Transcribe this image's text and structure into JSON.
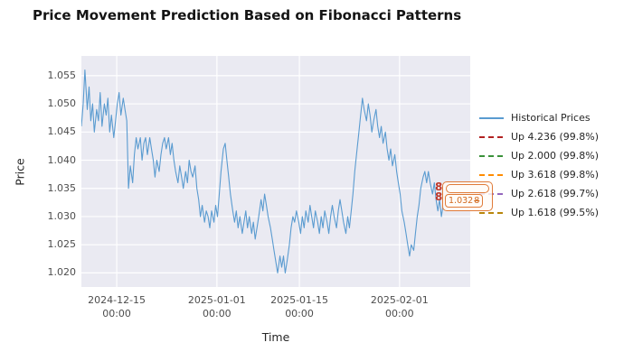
{
  "chart_data": {
    "type": "line",
    "title": "Price Movement Prediction Based on Fibonacci Patterns",
    "xlabel": "Time",
    "ylabel": "Price",
    "xlim": [
      0,
      66
    ],
    "ylim": [
      1.0175,
      1.0585
    ],
    "x_unit": "days since 2024-12-09 00:00",
    "grid": true,
    "axes_bg": "#eaeaf2",
    "grid_color": "#ffffff",
    "x_ticks": [
      {
        "day": 6,
        "line1": "2024-12-15",
        "line2": "00:00"
      },
      {
        "day": 23,
        "line1": "2025-01-01",
        "line2": "00:00"
      },
      {
        "day": 37,
        "line1": "2025-01-15",
        "line2": "00:00"
      },
      {
        "day": 54,
        "line1": "2025-02-01",
        "line2": "00:00"
      }
    ],
    "y_ticks": [
      {
        "v": 1.02,
        "label": "1.020"
      },
      {
        "v": 1.025,
        "label": "1.025"
      },
      {
        "v": 1.03,
        "label": "1.030"
      },
      {
        "v": 1.035,
        "label": "1.035"
      },
      {
        "v": 1.04,
        "label": "1.040"
      },
      {
        "v": 1.045,
        "label": "1.045"
      },
      {
        "v": 1.05,
        "label": "1.050"
      },
      {
        "v": 1.055,
        "label": "1.055"
      }
    ],
    "series": [
      {
        "name": "Historical Prices",
        "color": "#5a9bd0",
        "points": [
          [
            0,
            1.046
          ],
          [
            0.3,
            1.05
          ],
          [
            0.6,
            1.056
          ],
          [
            1,
            1.049
          ],
          [
            1.3,
            1.053
          ],
          [
            1.6,
            1.047
          ],
          [
            1.9,
            1.05
          ],
          [
            2.2,
            1.045
          ],
          [
            2.6,
            1.049
          ],
          [
            2.9,
            1.047
          ],
          [
            3.2,
            1.052
          ],
          [
            3.5,
            1.046
          ],
          [
            3.9,
            1.05
          ],
          [
            4.2,
            1.048
          ],
          [
            4.5,
            1.051
          ],
          [
            4.8,
            1.045
          ],
          [
            5.1,
            1.048
          ],
          [
            5.5,
            1.044
          ],
          [
            5.8,
            1.047
          ],
          [
            6.1,
            1.05
          ],
          [
            6.4,
            1.052
          ],
          [
            6.7,
            1.048
          ],
          [
            7.1,
            1.051
          ],
          [
            7.4,
            1.049
          ],
          [
            7.7,
            1.047
          ],
          [
            8,
            1.035
          ],
          [
            8.3,
            1.039
          ],
          [
            8.7,
            1.036
          ],
          [
            9,
            1.041
          ],
          [
            9.3,
            1.044
          ],
          [
            9.6,
            1.042
          ],
          [
            10,
            1.044
          ],
          [
            10.3,
            1.04
          ],
          [
            10.6,
            1.043
          ],
          [
            10.9,
            1.044
          ],
          [
            11.2,
            1.041
          ],
          [
            11.6,
            1.044
          ],
          [
            11.9,
            1.042
          ],
          [
            12.2,
            1.04
          ],
          [
            12.5,
            1.037
          ],
          [
            12.8,
            1.04
          ],
          [
            13.2,
            1.038
          ],
          [
            13.5,
            1.041
          ],
          [
            13.8,
            1.043
          ],
          [
            14.1,
            1.044
          ],
          [
            14.4,
            1.042
          ],
          [
            14.8,
            1.044
          ],
          [
            15.1,
            1.041
          ],
          [
            15.4,
            1.043
          ],
          [
            15.7,
            1.04
          ],
          [
            16,
            1.038
          ],
          [
            16.4,
            1.036
          ],
          [
            16.7,
            1.039
          ],
          [
            17,
            1.037
          ],
          [
            17.3,
            1.035
          ],
          [
            17.7,
            1.038
          ],
          [
            18,
            1.036
          ],
          [
            18.3,
            1.04
          ],
          [
            18.6,
            1.038
          ],
          [
            18.9,
            1.037
          ],
          [
            19.3,
            1.039
          ],
          [
            19.6,
            1.035
          ],
          [
            19.9,
            1.033
          ],
          [
            20.2,
            1.03
          ],
          [
            20.5,
            1.032
          ],
          [
            20.9,
            1.029
          ],
          [
            21.2,
            1.031
          ],
          [
            21.5,
            1.03
          ],
          [
            21.8,
            1.028
          ],
          [
            22.1,
            1.031
          ],
          [
            22.5,
            1.029
          ],
          [
            22.8,
            1.032
          ],
          [
            23.1,
            1.03
          ],
          [
            23.4,
            1.034
          ],
          [
            23.7,
            1.038
          ],
          [
            24.1,
            1.042
          ],
          [
            24.4,
            1.043
          ],
          [
            24.7,
            1.04
          ],
          [
            25,
            1.037
          ],
          [
            25.3,
            1.034
          ],
          [
            25.7,
            1.031
          ],
          [
            26,
            1.029
          ],
          [
            26.3,
            1.031
          ],
          [
            26.6,
            1.028
          ],
          [
            26.9,
            1.03
          ],
          [
            27.3,
            1.027
          ],
          [
            27.6,
            1.029
          ],
          [
            27.9,
            1.031
          ],
          [
            28.2,
            1.028
          ],
          [
            28.5,
            1.03
          ],
          [
            28.9,
            1.027
          ],
          [
            29.2,
            1.029
          ],
          [
            29.5,
            1.026
          ],
          [
            29.8,
            1.028
          ],
          [
            30.1,
            1.03
          ],
          [
            30.5,
            1.033
          ],
          [
            30.8,
            1.031
          ],
          [
            31.1,
            1.034
          ],
          [
            31.4,
            1.032
          ],
          [
            31.7,
            1.03
          ],
          [
            32.1,
            1.028
          ],
          [
            32.4,
            1.026
          ],
          [
            32.7,
            1.024
          ],
          [
            33,
            1.022
          ],
          [
            33.3,
            1.02
          ],
          [
            33.7,
            1.023
          ],
          [
            34,
            1.021
          ],
          [
            34.3,
            1.023
          ],
          [
            34.6,
            1.02
          ],
          [
            34.9,
            1.022
          ],
          [
            35.3,
            1.025
          ],
          [
            35.6,
            1.028
          ],
          [
            35.9,
            1.03
          ],
          [
            36.2,
            1.029
          ],
          [
            36.5,
            1.031
          ],
          [
            36.9,
            1.029
          ],
          [
            37.2,
            1.027
          ],
          [
            37.5,
            1.03
          ],
          [
            37.8,
            1.028
          ],
          [
            38.1,
            1.031
          ],
          [
            38.5,
            1.029
          ],
          [
            38.8,
            1.032
          ],
          [
            39.1,
            1.03
          ],
          [
            39.4,
            1.028
          ],
          [
            39.7,
            1.031
          ],
          [
            40.1,
            1.029
          ],
          [
            40.4,
            1.027
          ],
          [
            40.7,
            1.03
          ],
          [
            41,
            1.028
          ],
          [
            41.3,
            1.031
          ],
          [
            41.7,
            1.029
          ],
          [
            42,
            1.027
          ],
          [
            42.3,
            1.03
          ],
          [
            42.6,
            1.032
          ],
          [
            42.9,
            1.03
          ],
          [
            43.3,
            1.028
          ],
          [
            43.6,
            1.031
          ],
          [
            43.9,
            1.033
          ],
          [
            44.2,
            1.031
          ],
          [
            44.5,
            1.029
          ],
          [
            44.9,
            1.027
          ],
          [
            45.2,
            1.03
          ],
          [
            45.5,
            1.028
          ],
          [
            45.8,
            1.031
          ],
          [
            46.1,
            1.034
          ],
          [
            46.4,
            1.038
          ],
          [
            46.8,
            1.042
          ],
          [
            47.1,
            1.045
          ],
          [
            47.4,
            1.048
          ],
          [
            47.7,
            1.051
          ],
          [
            48,
            1.049
          ],
          [
            48.4,
            1.047
          ],
          [
            48.7,
            1.05
          ],
          [
            49,
            1.048
          ],
          [
            49.3,
            1.045
          ],
          [
            49.6,
            1.047
          ],
          [
            50,
            1.049
          ],
          [
            50.3,
            1.046
          ],
          [
            50.6,
            1.044
          ],
          [
            50.9,
            1.046
          ],
          [
            51.2,
            1.043
          ],
          [
            51.6,
            1.045
          ],
          [
            51.9,
            1.042
          ],
          [
            52.2,
            1.04
          ],
          [
            52.5,
            1.042
          ],
          [
            52.8,
            1.039
          ],
          [
            53.2,
            1.041
          ],
          [
            53.5,
            1.038
          ],
          [
            53.8,
            1.036
          ],
          [
            54.1,
            1.034
          ],
          [
            54.4,
            1.031
          ],
          [
            54.8,
            1.029
          ],
          [
            55.1,
            1.027
          ],
          [
            55.4,
            1.025
          ],
          [
            55.7,
            1.023
          ],
          [
            56,
            1.025
          ],
          [
            56.4,
            1.024
          ],
          [
            56.7,
            1.027
          ],
          [
            57,
            1.03
          ],
          [
            57.3,
            1.032
          ],
          [
            57.6,
            1.035
          ],
          [
            58,
            1.037
          ],
          [
            58.3,
            1.038
          ],
          [
            58.6,
            1.036
          ],
          [
            58.9,
            1.038
          ],
          [
            59.2,
            1.036
          ],
          [
            59.6,
            1.034
          ],
          [
            59.9,
            1.036
          ],
          [
            60.2,
            1.033
          ],
          [
            60.5,
            1.031
          ],
          [
            60.8,
            1.033
          ],
          [
            61.1,
            1.03
          ],
          [
            61.4,
            1.032
          ]
        ]
      }
    ],
    "legend": {
      "position": "right",
      "entries": [
        {
          "label": "Historical Prices",
          "color": "#5a9bd0",
          "dash": false
        },
        {
          "label": "Up 4.236 (99.8%)",
          "color": "#b22222",
          "dash": true
        },
        {
          "label": "Up 2.000 (99.8%)",
          "color": "#3a923a",
          "dash": true
        },
        {
          "label": "Up 3.618 (99.8%)",
          "color": "#ff8c00",
          "dash": true
        },
        {
          "label": "Up 2.618 (99.7%)",
          "color": "#9467bd",
          "dash": true
        },
        {
          "label": "Up 1.618 (99.5%)",
          "color": "#b8860b",
          "dash": true
        }
      ]
    },
    "annotations": {
      "end_point": {
        "t": 61.4,
        "price": 1.032
      },
      "marker_glyphs": [
        "8",
        "8"
      ],
      "label_text": "1.032",
      "label_struck": "8"
    }
  }
}
